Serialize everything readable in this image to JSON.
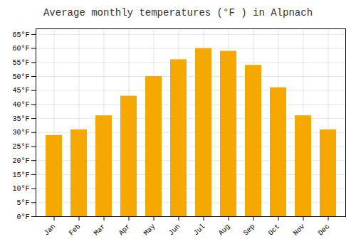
{
  "chart_data": {
    "type": "bar",
    "title": "Average monthly temperatures (°F ) in Alpnach",
    "categories": [
      "Jan",
      "Feb",
      "Mar",
      "Apr",
      "May",
      "Jun",
      "Jul",
      "Aug",
      "Sep",
      "Oct",
      "Nov",
      "Dec"
    ],
    "values": [
      29,
      31,
      36,
      43,
      50,
      56,
      60,
      59,
      54,
      46,
      36,
      31
    ],
    "color": "#F5A800",
    "ylim": [
      0,
      67
    ],
    "yticks": [
      {
        "value": 0,
        "label": "0°F"
      },
      {
        "value": 5,
        "label": "5°F"
      },
      {
        "value": 10,
        "label": "10°F"
      },
      {
        "value": 15,
        "label": "15°F"
      },
      {
        "value": 20,
        "label": "20°F"
      },
      {
        "value": 25,
        "label": "25°F"
      },
      {
        "value": 30,
        "label": "30°F"
      },
      {
        "value": 35,
        "label": "35°F"
      },
      {
        "value": 40,
        "label": "40°F"
      },
      {
        "value": 45,
        "label": "45°F"
      },
      {
        "value": 50,
        "label": "50°F"
      },
      {
        "value": 55,
        "label": "55°F"
      },
      {
        "value": 60,
        "label": "60°F"
      },
      {
        "value": 65,
        "label": "65°F"
      }
    ],
    "grid": true
  }
}
